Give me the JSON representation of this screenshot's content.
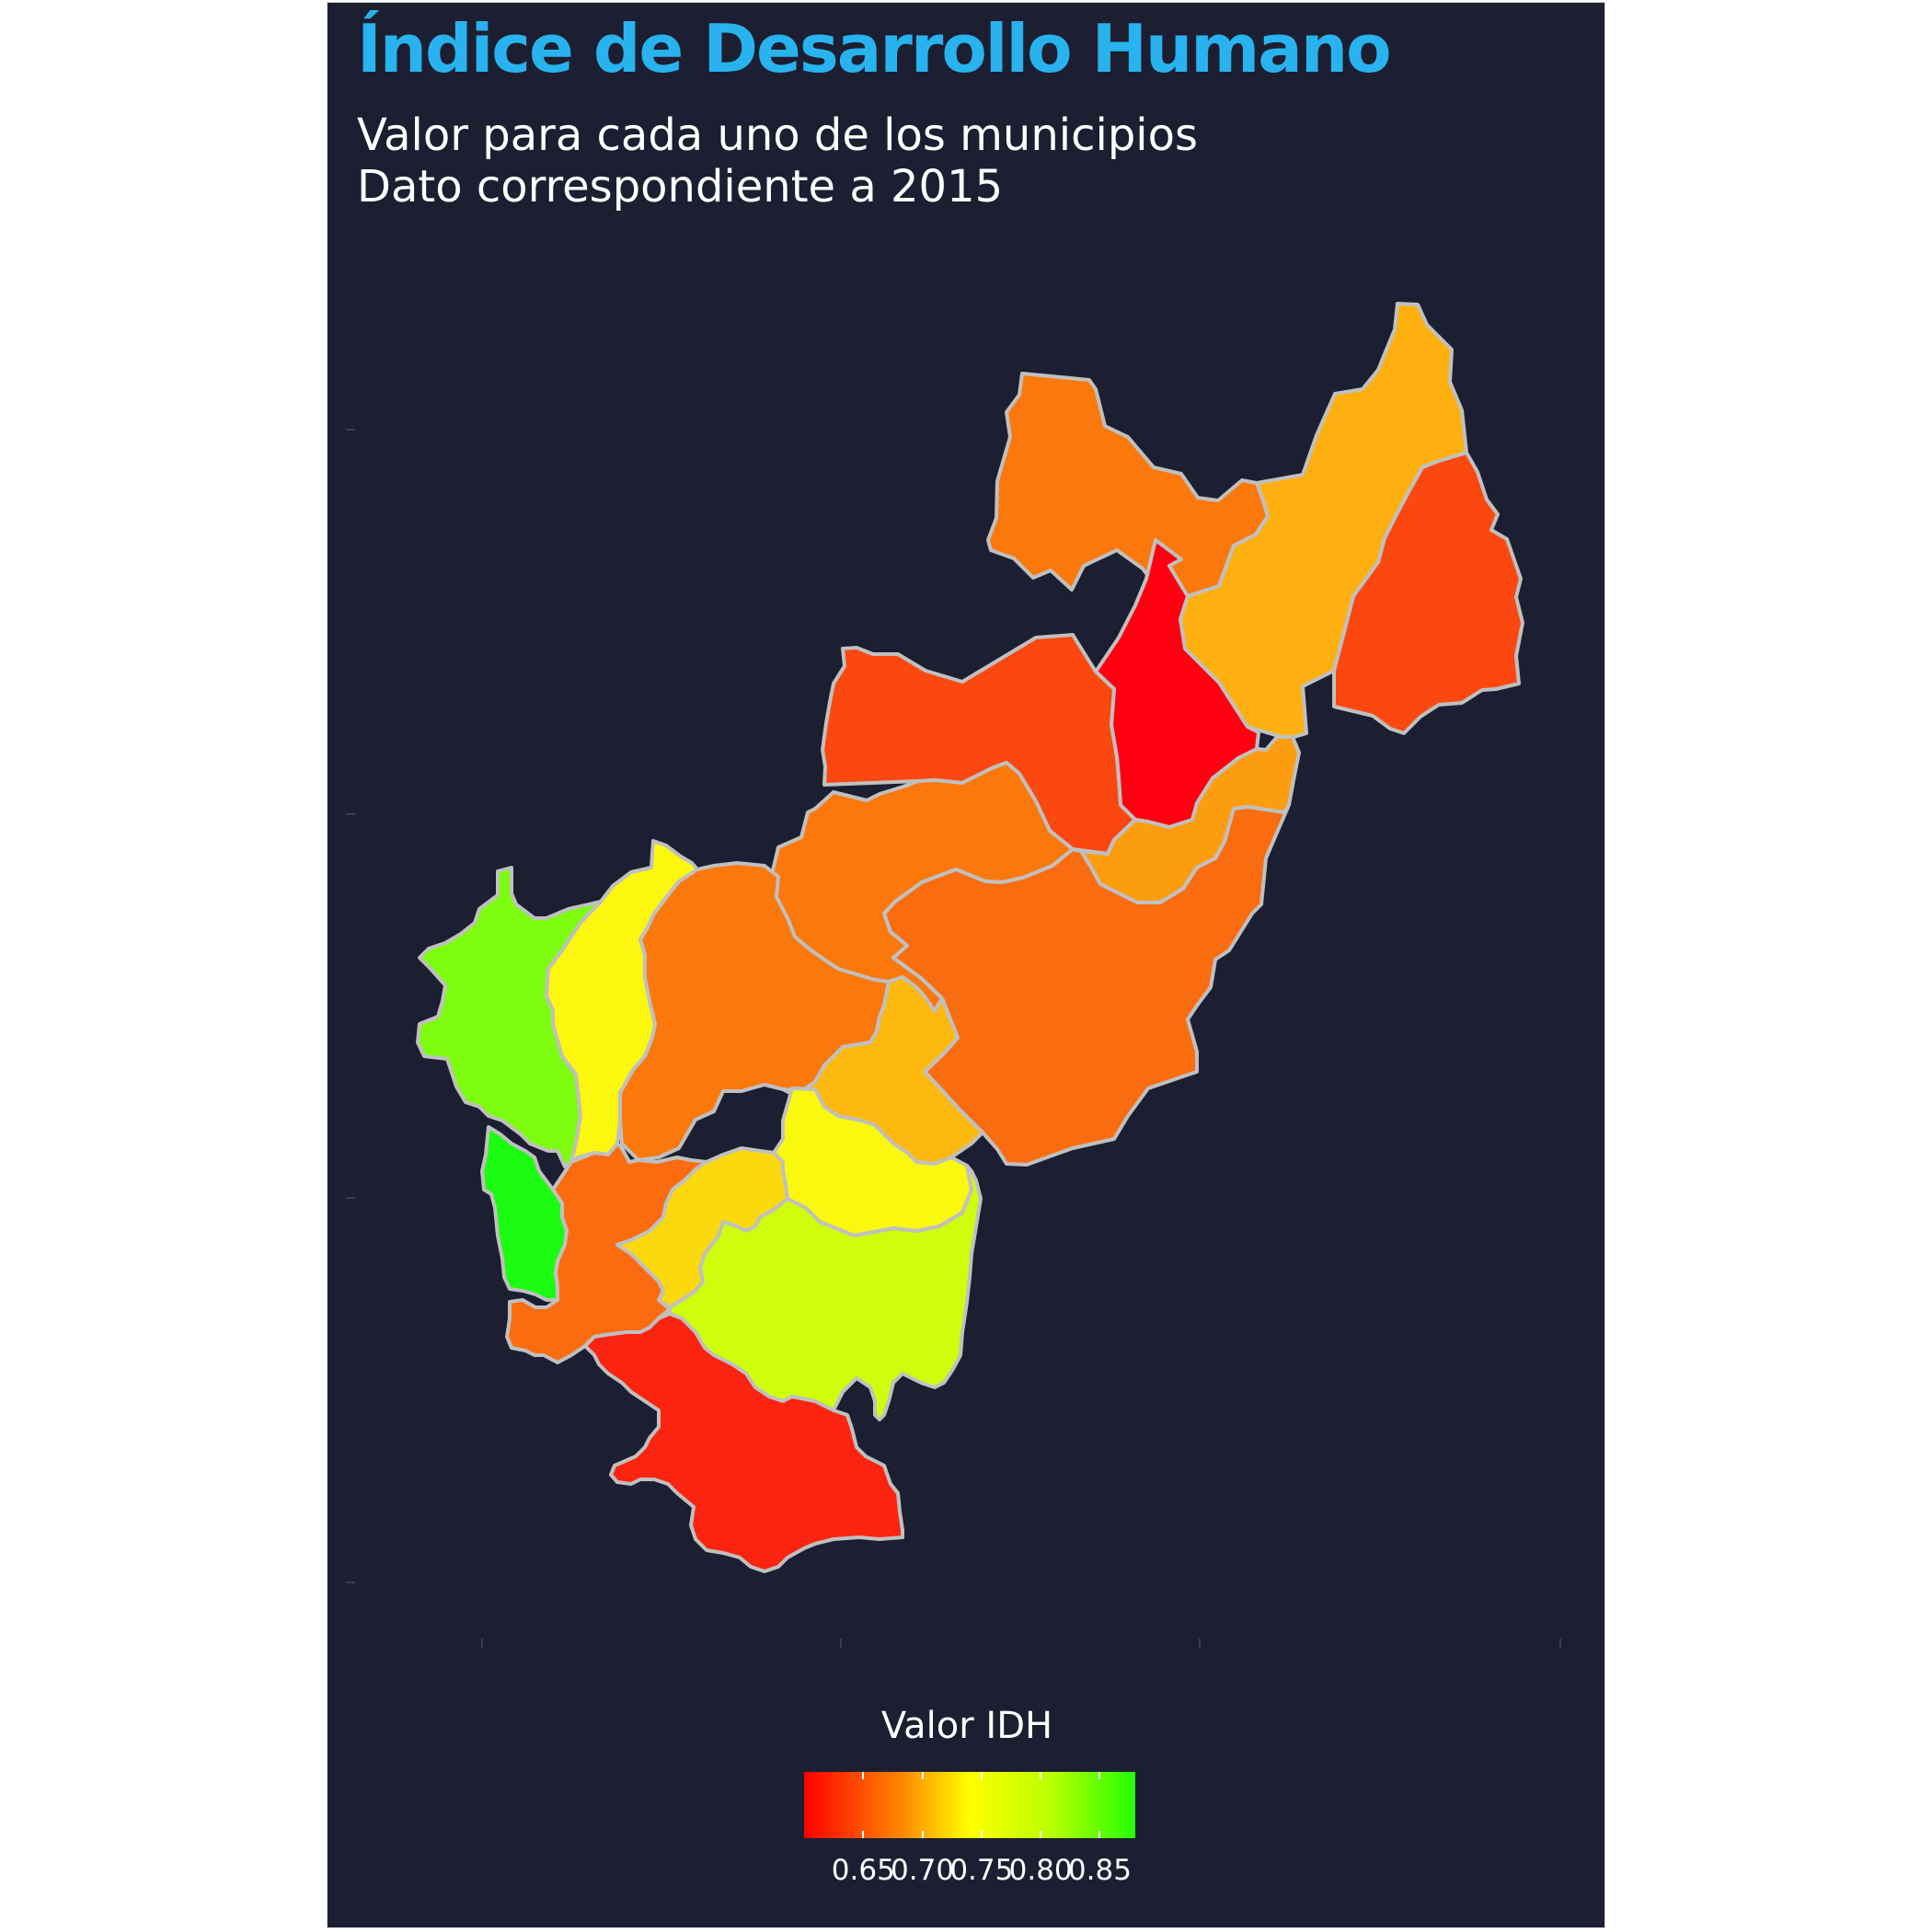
{
  "title": "Índice de Desarrollo Humano",
  "subtitle_line1": "Valor para cada uno de los municipios",
  "subtitle_line2": "Dato correspondiente a 2015",
  "colors": {
    "background": "#1c1f31",
    "title": "#29b3ee",
    "text": "#ffffff",
    "boundary": "#c0c0c0",
    "scale_low": "#ff0000",
    "scale_mid": "#ffff00",
    "scale_high": "#00ff00"
  },
  "map": {
    "region_name": "",
    "municipalities": [
      {
        "id": "m01",
        "color": "#fb780c"
      },
      {
        "id": "m02",
        "color": "#fdb00f"
      },
      {
        "id": "m03",
        "color": "#fb4810"
      },
      {
        "id": "m04",
        "color": "#ff0010"
      },
      {
        "id": "m05",
        "color": "#fb4810"
      },
      {
        "id": "m06",
        "color": "#fb780c"
      },
      {
        "id": "m07",
        "color": "#fc9d10"
      },
      {
        "id": "m08",
        "color": "#fa6c10"
      },
      {
        "id": "m09",
        "color": "#7dfc10"
      },
      {
        "id": "m10",
        "color": "#fcf70e"
      },
      {
        "id": "m11",
        "color": "#fb780c"
      },
      {
        "id": "m12",
        "color": "#fdb90f"
      },
      {
        "id": "m13",
        "color": "#fbf810"
      },
      {
        "id": "m14",
        "color": "#1cfc10"
      },
      {
        "id": "m15",
        "color": "#fb6c10"
      },
      {
        "id": "m16",
        "color": "#fcd80e"
      },
      {
        "id": "m17",
        "color": "#d0fc0e"
      },
      {
        "id": "m18",
        "color": "#fb2410"
      }
    ]
  },
  "legend": {
    "title": "Valor IDH",
    "min": 0.6,
    "max": 0.88,
    "ticks": [
      {
        "value": 0.65,
        "label": "0.65"
      },
      {
        "value": 0.7,
        "label": "0.70"
      },
      {
        "value": 0.75,
        "label": "0.75"
      },
      {
        "value": 0.8,
        "label": "0.80"
      },
      {
        "value": 0.85,
        "label": "0.85"
      }
    ]
  }
}
